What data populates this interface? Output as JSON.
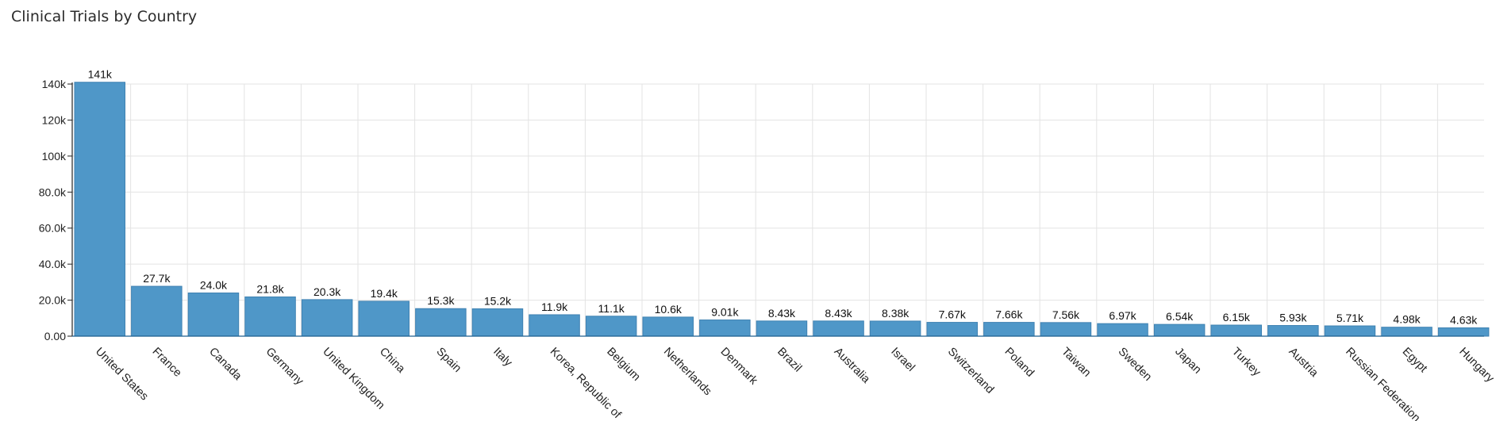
{
  "title": "Clinical Trials by Country",
  "chart_data": {
    "type": "bar",
    "title": "Clinical Trials by Country",
    "xlabel": "",
    "ylabel": "",
    "ylim": [
      0,
      140000
    ],
    "yticks": [
      "0.00",
      "20.0k",
      "40.0k",
      "60.0k",
      "80.0k",
      "100k",
      "120k",
      "140k"
    ],
    "categories": [
      "United States",
      "France",
      "Canada",
      "Germany",
      "United Kingdom",
      "China",
      "Spain",
      "Italy",
      "Korea, Republic of",
      "Belgium",
      "Netherlands",
      "Denmark",
      "Brazil",
      "Australia",
      "Israel",
      "Switzerland",
      "Poland",
      "Taiwan",
      "Sweden",
      "Japan",
      "Turkey",
      "Austria",
      "Russian Federation",
      "Egypt",
      "Hungary"
    ],
    "values": [
      141000,
      27700,
      24000,
      21800,
      20300,
      19400,
      15300,
      15200,
      11900,
      11100,
      10600,
      9010,
      8430,
      8430,
      8380,
      7670,
      7660,
      7560,
      6970,
      6540,
      6150,
      5930,
      5710,
      4980,
      4630
    ],
    "data_labels": [
      "141k",
      "27.7k",
      "24.0k",
      "21.8k",
      "20.3k",
      "19.4k",
      "15.3k",
      "15.2k",
      "11.9k",
      "11.1k",
      "10.6k",
      "9.01k",
      "8.43k",
      "8.43k",
      "8.38k",
      "7.67k",
      "7.66k",
      "7.56k",
      "6.97k",
      "6.54k",
      "6.15k",
      "5.93k",
      "5.71k",
      "4.98k",
      "4.63k"
    ],
    "grid": true,
    "bar_color": "#4f97c8",
    "bar_edge_color": "#3f82b2"
  }
}
